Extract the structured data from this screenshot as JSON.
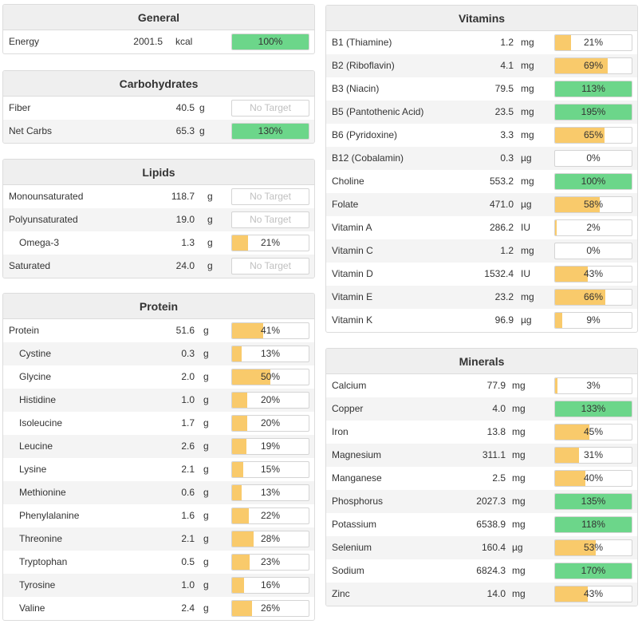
{
  "colors": {
    "yellow": "#f9ca6b",
    "green": "#6cd68a"
  },
  "general": {
    "title": "General",
    "rows": [
      {
        "name": "Energy",
        "amount": "2001.5",
        "unit": "kcal",
        "percent_label": "100%",
        "fill": 100,
        "status": "green"
      }
    ]
  },
  "carbohydrates": {
    "title": "Carbohydrates",
    "rows": [
      {
        "name": "Fiber",
        "amount": "40.5",
        "unit": "g",
        "percent_label": "No Target",
        "fill": 0,
        "status": "none"
      },
      {
        "name": "Net Carbs",
        "amount": "65.3",
        "unit": "g",
        "percent_label": "130%",
        "fill": 100,
        "status": "green"
      }
    ]
  },
  "lipids": {
    "title": "Lipids",
    "rows": [
      {
        "name": "Monounsaturated",
        "amount": "118.7",
        "unit": "g",
        "percent_label": "No Target",
        "fill": 0,
        "status": "none"
      },
      {
        "name": "Polyunsaturated",
        "amount": "19.0",
        "unit": "g",
        "percent_label": "No Target",
        "fill": 0,
        "status": "none"
      },
      {
        "name": "Omega-3",
        "amount": "1.3",
        "unit": "g",
        "percent_label": "21%",
        "fill": 21,
        "status": "yellow",
        "sub": true
      },
      {
        "name": "Saturated",
        "amount": "24.0",
        "unit": "g",
        "percent_label": "No Target",
        "fill": 0,
        "status": "none"
      }
    ]
  },
  "protein": {
    "title": "Protein",
    "rows": [
      {
        "name": "Protein",
        "amount": "51.6",
        "unit": "g",
        "percent_label": "41%",
        "fill": 41,
        "status": "yellow"
      },
      {
        "name": "Cystine",
        "amount": "0.3",
        "unit": "g",
        "percent_label": "13%",
        "fill": 13,
        "status": "yellow",
        "sub": true
      },
      {
        "name": "Glycine",
        "amount": "2.0",
        "unit": "g",
        "percent_label": "50%",
        "fill": 50,
        "status": "yellow",
        "sub": true
      },
      {
        "name": "Histidine",
        "amount": "1.0",
        "unit": "g",
        "percent_label": "20%",
        "fill": 20,
        "status": "yellow",
        "sub": true
      },
      {
        "name": "Isoleucine",
        "amount": "1.7",
        "unit": "g",
        "percent_label": "20%",
        "fill": 20,
        "status": "yellow",
        "sub": true
      },
      {
        "name": "Leucine",
        "amount": "2.6",
        "unit": "g",
        "percent_label": "19%",
        "fill": 19,
        "status": "yellow",
        "sub": true
      },
      {
        "name": "Lysine",
        "amount": "2.1",
        "unit": "g",
        "percent_label": "15%",
        "fill": 15,
        "status": "yellow",
        "sub": true
      },
      {
        "name": "Methionine",
        "amount": "0.6",
        "unit": "g",
        "percent_label": "13%",
        "fill": 13,
        "status": "yellow",
        "sub": true
      },
      {
        "name": "Phenylalanine",
        "amount": "1.6",
        "unit": "g",
        "percent_label": "22%",
        "fill": 22,
        "status": "yellow",
        "sub": true
      },
      {
        "name": "Threonine",
        "amount": "2.1",
        "unit": "g",
        "percent_label": "28%",
        "fill": 28,
        "status": "yellow",
        "sub": true
      },
      {
        "name": "Tryptophan",
        "amount": "0.5",
        "unit": "g",
        "percent_label": "23%",
        "fill": 23,
        "status": "yellow",
        "sub": true
      },
      {
        "name": "Tyrosine",
        "amount": "1.0",
        "unit": "g",
        "percent_label": "16%",
        "fill": 16,
        "status": "yellow",
        "sub": true
      },
      {
        "name": "Valine",
        "amount": "2.4",
        "unit": "g",
        "percent_label": "26%",
        "fill": 26,
        "status": "yellow",
        "sub": true
      }
    ]
  },
  "vitamins": {
    "title": "Vitamins",
    "rows": [
      {
        "name": "B1 (Thiamine)",
        "amount": "1.2",
        "unit": "mg",
        "percent_label": "21%",
        "fill": 21,
        "status": "yellow"
      },
      {
        "name": "B2 (Riboflavin)",
        "amount": "4.1",
        "unit": "mg",
        "percent_label": "69%",
        "fill": 69,
        "status": "yellow"
      },
      {
        "name": "B3 (Niacin)",
        "amount": "79.5",
        "unit": "mg",
        "percent_label": "113%",
        "fill": 100,
        "status": "green"
      },
      {
        "name": "B5 (Pantothenic Acid)",
        "amount": "23.5",
        "unit": "mg",
        "percent_label": "195%",
        "fill": 100,
        "status": "green"
      },
      {
        "name": "B6 (Pyridoxine)",
        "amount": "3.3",
        "unit": "mg",
        "percent_label": "65%",
        "fill": 65,
        "status": "yellow"
      },
      {
        "name": "B12 (Cobalamin)",
        "amount": "0.3",
        "unit": "µg",
        "percent_label": "0%",
        "fill": 0,
        "status": "yellow"
      },
      {
        "name": "Choline",
        "amount": "553.2",
        "unit": "mg",
        "percent_label": "100%",
        "fill": 100,
        "status": "green"
      },
      {
        "name": "Folate",
        "amount": "471.0",
        "unit": "µg",
        "percent_label": "58%",
        "fill": 58,
        "status": "yellow"
      },
      {
        "name": "Vitamin A",
        "amount": "286.2",
        "unit": "IU",
        "percent_label": "2%",
        "fill": 2,
        "status": "yellow"
      },
      {
        "name": "Vitamin C",
        "amount": "1.2",
        "unit": "mg",
        "percent_label": "0%",
        "fill": 0,
        "status": "yellow"
      },
      {
        "name": "Vitamin D",
        "amount": "1532.4",
        "unit": "IU",
        "percent_label": "43%",
        "fill": 43,
        "status": "yellow"
      },
      {
        "name": "Vitamin E",
        "amount": "23.2",
        "unit": "mg",
        "percent_label": "66%",
        "fill": 66,
        "status": "yellow"
      },
      {
        "name": "Vitamin K",
        "amount": "96.9",
        "unit": "µg",
        "percent_label": "9%",
        "fill": 9,
        "status": "yellow"
      }
    ]
  },
  "minerals": {
    "title": "Minerals",
    "rows": [
      {
        "name": "Calcium",
        "amount": "77.9",
        "unit": "mg",
        "percent_label": "3%",
        "fill": 3,
        "status": "yellow"
      },
      {
        "name": "Copper",
        "amount": "4.0",
        "unit": "mg",
        "percent_label": "133%",
        "fill": 100,
        "status": "green"
      },
      {
        "name": "Iron",
        "amount": "13.8",
        "unit": "mg",
        "percent_label": "45%",
        "fill": 45,
        "status": "yellow"
      },
      {
        "name": "Magnesium",
        "amount": "311.1",
        "unit": "mg",
        "percent_label": "31%",
        "fill": 31,
        "status": "yellow"
      },
      {
        "name": "Manganese",
        "amount": "2.5",
        "unit": "mg",
        "percent_label": "40%",
        "fill": 40,
        "status": "yellow"
      },
      {
        "name": "Phosphorus",
        "amount": "2027.3",
        "unit": "mg",
        "percent_label": "135%",
        "fill": 100,
        "status": "green"
      },
      {
        "name": "Potassium",
        "amount": "6538.9",
        "unit": "mg",
        "percent_label": "118%",
        "fill": 100,
        "status": "green"
      },
      {
        "name": "Selenium",
        "amount": "160.4",
        "unit": "µg",
        "percent_label": "53%",
        "fill": 53,
        "status": "yellow"
      },
      {
        "name": "Sodium",
        "amount": "6824.3",
        "unit": "mg",
        "percent_label": "170%",
        "fill": 100,
        "status": "green"
      },
      {
        "name": "Zinc",
        "amount": "14.0",
        "unit": "mg",
        "percent_label": "43%",
        "fill": 43,
        "status": "yellow"
      }
    ]
  }
}
